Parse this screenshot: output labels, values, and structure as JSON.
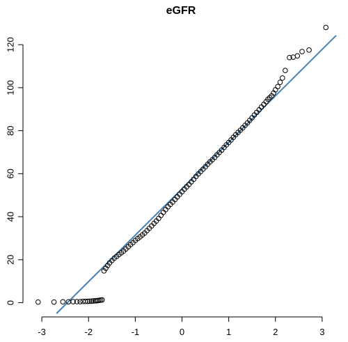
{
  "chart_data": {
    "type": "scatter",
    "title": "eGFR",
    "xlabel": "",
    "ylabel": "",
    "xlim": [
      -3.3,
      3.3
    ],
    "ylim": [
      -5,
      133
    ],
    "x_ticks": [
      -3,
      -2,
      -1,
      0,
      1,
      2,
      3
    ],
    "x_tick_labels": [
      "-3",
      "-2",
      "-1",
      "0",
      "1",
      "2",
      "3"
    ],
    "y_ticks": [
      0,
      20,
      40,
      60,
      80,
      100,
      120
    ],
    "y_tick_labels": [
      "0",
      "20",
      "40",
      "60",
      "80",
      "100",
      "120"
    ],
    "grid": false,
    "point_color": "#000000",
    "line_color": "#4682b4",
    "reference_line": {
      "intercept": 53.0,
      "slope": 21.6
    },
    "points": [
      {
        "x": -3.08,
        "y": 0.3
      },
      {
        "x": -2.74,
        "y": 0.3
      },
      {
        "x": -2.55,
        "y": 0.4
      },
      {
        "x": -2.43,
        "y": 0.4
      },
      {
        "x": -2.33,
        "y": 0.5
      },
      {
        "x": -2.25,
        "y": 0.5
      },
      {
        "x": -2.18,
        "y": 0.5
      },
      {
        "x": -2.12,
        "y": 0.6
      },
      {
        "x": -2.07,
        "y": 0.6
      },
      {
        "x": -2.02,
        "y": 0.6
      },
      {
        "x": -1.98,
        "y": 0.7
      },
      {
        "x": -1.94,
        "y": 0.7
      },
      {
        "x": -1.9,
        "y": 0.8
      },
      {
        "x": -1.86,
        "y": 0.9
      },
      {
        "x": -1.83,
        "y": 0.9
      },
      {
        "x": -1.8,
        "y": 1.0
      },
      {
        "x": -1.77,
        "y": 1.1
      },
      {
        "x": -1.74,
        "y": 1.2
      },
      {
        "x": -1.71,
        "y": 1.3
      },
      {
        "x": -1.67,
        "y": 14.8
      },
      {
        "x": -1.63,
        "y": 16.0
      },
      {
        "x": -1.59,
        "y": 17.3
      },
      {
        "x": -1.55,
        "y": 18.5
      },
      {
        "x": -1.5,
        "y": 19.6
      },
      {
        "x": -1.45,
        "y": 20.7
      },
      {
        "x": -1.4,
        "y": 21.5
      },
      {
        "x": -1.35,
        "y": 22.4
      },
      {
        "x": -1.3,
        "y": 23.2
      },
      {
        "x": -1.25,
        "y": 24.0
      },
      {
        "x": -1.2,
        "y": 25.0
      },
      {
        "x": -1.15,
        "y": 26.0
      },
      {
        "x": -1.1,
        "y": 27.0
      },
      {
        "x": -1.05,
        "y": 27.9
      },
      {
        "x": -1.0,
        "y": 28.9
      },
      {
        "x": -0.95,
        "y": 29.8
      },
      {
        "x": -0.9,
        "y": 30.6
      },
      {
        "x": -0.85,
        "y": 31.5
      },
      {
        "x": -0.8,
        "y": 32.4
      },
      {
        "x": -0.75,
        "y": 33.5
      },
      {
        "x": -0.7,
        "y": 34.6
      },
      {
        "x": -0.65,
        "y": 35.7
      },
      {
        "x": -0.6,
        "y": 36.9
      },
      {
        "x": -0.55,
        "y": 38.0
      },
      {
        "x": -0.5,
        "y": 39.2
      },
      {
        "x": -0.45,
        "y": 40.6
      },
      {
        "x": -0.4,
        "y": 42.0
      },
      {
        "x": -0.35,
        "y": 43.3
      },
      {
        "x": -0.3,
        "y": 44.6
      },
      {
        "x": -0.25,
        "y": 45.7
      },
      {
        "x": -0.2,
        "y": 46.8
      },
      {
        "x": -0.15,
        "y": 48.0
      },
      {
        "x": -0.1,
        "y": 49.2
      },
      {
        "x": -0.05,
        "y": 50.4
      },
      {
        "x": 0.0,
        "y": 51.6
      },
      {
        "x": 0.05,
        "y": 52.8
      },
      {
        "x": 0.1,
        "y": 53.9
      },
      {
        "x": 0.15,
        "y": 55.0
      },
      {
        "x": 0.2,
        "y": 56.2
      },
      {
        "x": 0.25,
        "y": 57.4
      },
      {
        "x": 0.3,
        "y": 58.7
      },
      {
        "x": 0.35,
        "y": 59.9
      },
      {
        "x": 0.4,
        "y": 61.0
      },
      {
        "x": 0.45,
        "y": 62.1
      },
      {
        "x": 0.5,
        "y": 63.2
      },
      {
        "x": 0.55,
        "y": 64.4
      },
      {
        "x": 0.6,
        "y": 65.5
      },
      {
        "x": 0.65,
        "y": 66.5
      },
      {
        "x": 0.7,
        "y": 67.6
      },
      {
        "x": 0.75,
        "y": 68.8
      },
      {
        "x": 0.8,
        "y": 69.9
      },
      {
        "x": 0.85,
        "y": 71.0
      },
      {
        "x": 0.9,
        "y": 72.2
      },
      {
        "x": 0.95,
        "y": 73.4
      },
      {
        "x": 1.0,
        "y": 74.5
      },
      {
        "x": 1.05,
        "y": 75.7
      },
      {
        "x": 1.1,
        "y": 76.9
      },
      {
        "x": 1.15,
        "y": 78.1
      },
      {
        "x": 1.2,
        "y": 79.2
      },
      {
        "x": 1.25,
        "y": 80.2
      },
      {
        "x": 1.3,
        "y": 81.3
      },
      {
        "x": 1.35,
        "y": 82.5
      },
      {
        "x": 1.4,
        "y": 83.6
      },
      {
        "x": 1.45,
        "y": 84.8
      },
      {
        "x": 1.5,
        "y": 86.0
      },
      {
        "x": 1.55,
        "y": 87.3
      },
      {
        "x": 1.6,
        "y": 88.5
      },
      {
        "x": 1.65,
        "y": 89.7
      },
      {
        "x": 1.7,
        "y": 91.0
      },
      {
        "x": 1.75,
        "y": 92.2
      },
      {
        "x": 1.8,
        "y": 93.5
      },
      {
        "x": 1.84,
        "y": 94.6
      },
      {
        "x": 1.88,
        "y": 95.4
      },
      {
        "x": 1.92,
        "y": 96.2
      },
      {
        "x": 1.96,
        "y": 97.5
      },
      {
        "x": 2.0,
        "y": 99.0
      },
      {
        "x": 2.05,
        "y": 100.5
      },
      {
        "x": 2.1,
        "y": 102.5
      },
      {
        "x": 2.15,
        "y": 104.5
      },
      {
        "x": 2.21,
        "y": 108.0
      },
      {
        "x": 2.3,
        "y": 114.0
      },
      {
        "x": 2.38,
        "y": 114.2
      },
      {
        "x": 2.47,
        "y": 114.8
      },
      {
        "x": 2.57,
        "y": 116.8
      },
      {
        "x": 2.72,
        "y": 117.5
      },
      {
        "x": 3.08,
        "y": 128.0
      }
    ]
  }
}
